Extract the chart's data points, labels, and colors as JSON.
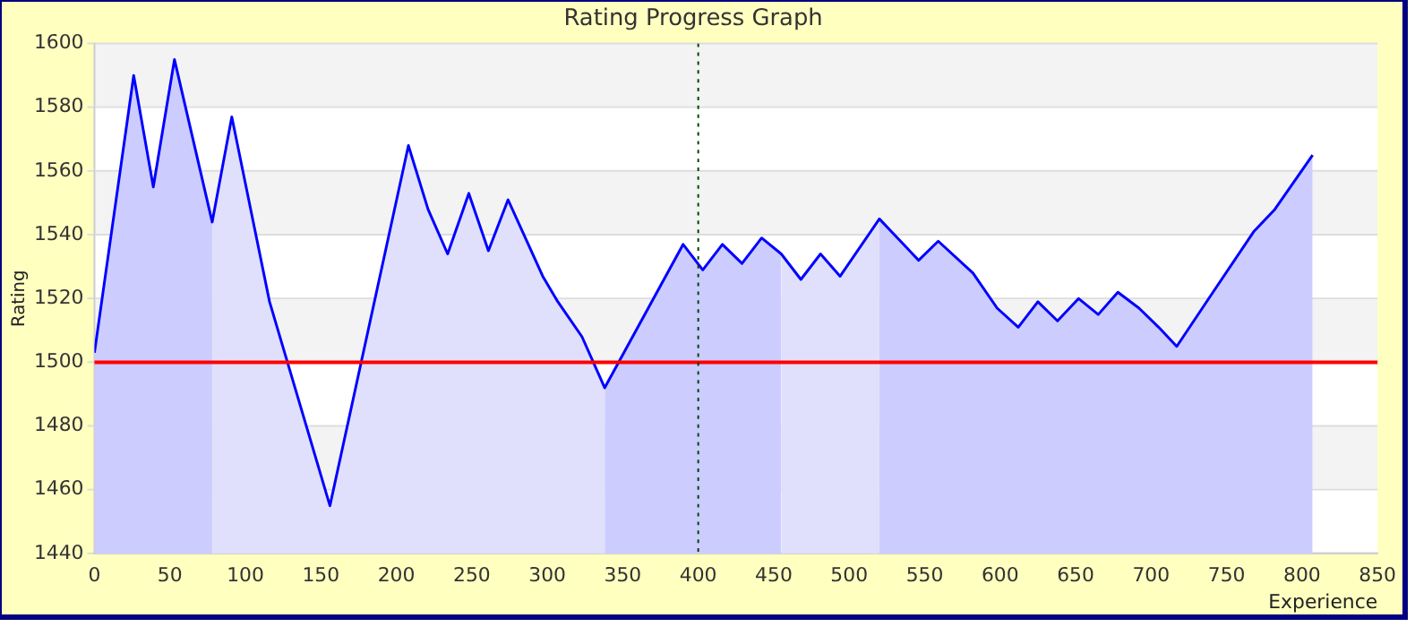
{
  "chart_data": {
    "type": "line",
    "title": "Rating Progress Graph",
    "xlabel": "Experience",
    "ylabel": "Rating",
    "xlim": [
      0,
      850
    ],
    "xticks": [
      0,
      50,
      100,
      150,
      200,
      250,
      300,
      350,
      400,
      450,
      500,
      550,
      600,
      650,
      700,
      750,
      800,
      850
    ],
    "ylim": [
      1440,
      1600
    ],
    "yticks": [
      1440,
      1460,
      1480,
      1500,
      1520,
      1540,
      1560,
      1580,
      1600
    ],
    "grid": "y",
    "series": [
      {
        "type": "area",
        "color": "#ccccff",
        "x": [
          0,
          26,
          39,
          53,
          78
        ],
        "values": [
          1503,
          1590,
          1555,
          1595,
          1544
        ]
      },
      {
        "type": "area",
        "color": "#e0e0fc",
        "x": [
          78,
          91,
          116,
          156,
          208,
          221,
          234,
          248,
          261,
          274,
          297,
          307,
          323,
          338
        ],
        "values": [
          1544,
          1577,
          1519,
          1455,
          1568,
          1548,
          1534,
          1553,
          1535,
          1551,
          1527,
          1519,
          1508,
          1492
        ]
      },
      {
        "type": "area",
        "color": "#ccccff",
        "x": [
          338,
          390,
          403,
          416,
          429,
          442,
          455
        ],
        "values": [
          1492,
          1537,
          1529,
          1537,
          1531,
          1539,
          1534
        ]
      },
      {
        "type": "area",
        "color": "#e0e0fc",
        "x": [
          455,
          468,
          481,
          494,
          520
        ],
        "values": [
          1534,
          1526,
          1534,
          1527,
          1545
        ]
      },
      {
        "type": "area",
        "color": "#ccccff",
        "x": [
          520,
          546,
          559,
          582,
          598,
          612,
          625,
          638,
          652,
          665,
          678,
          692,
          705,
          717,
          741,
          768,
          782,
          807
        ],
        "values": [
          1545,
          1532,
          1538,
          1528,
          1517,
          1511,
          1519,
          1513,
          1520,
          1515,
          1522,
          1517,
          1511,
          1505,
          1522,
          1541,
          1548,
          1565
        ]
      },
      {
        "type": "line",
        "color": "#0000ff",
        "x": [
          0,
          26,
          39,
          53,
          78,
          91,
          116,
          156,
          208,
          221,
          234,
          248,
          261,
          274,
          297,
          307,
          323,
          338,
          390,
          403,
          416,
          429,
          442,
          455,
          468,
          481,
          494,
          520,
          546,
          559,
          582,
          598,
          612,
          625,
          638,
          652,
          665,
          678,
          692,
          705,
          717,
          741,
          768,
          782,
          807
        ],
        "values": [
          1503,
          1590,
          1555,
          1595,
          1544,
          1577,
          1519,
          1455,
          1568,
          1548,
          1534,
          1553,
          1535,
          1551,
          1527,
          1519,
          1508,
          1492,
          1537,
          1529,
          1537,
          1531,
          1539,
          1534,
          1526,
          1534,
          1527,
          1545,
          1532,
          1538,
          1528,
          1517,
          1511,
          1519,
          1513,
          1520,
          1515,
          1522,
          1517,
          1511,
          1505,
          1522,
          1541,
          1548,
          1565
        ]
      }
    ],
    "ref_lines": [
      {
        "axis": "y",
        "value": 1500,
        "color": "#ff0000",
        "line_style": "solid"
      },
      {
        "axis": "x",
        "value": 400,
        "color": "#004400",
        "line_style": "dotted"
      }
    ]
  }
}
